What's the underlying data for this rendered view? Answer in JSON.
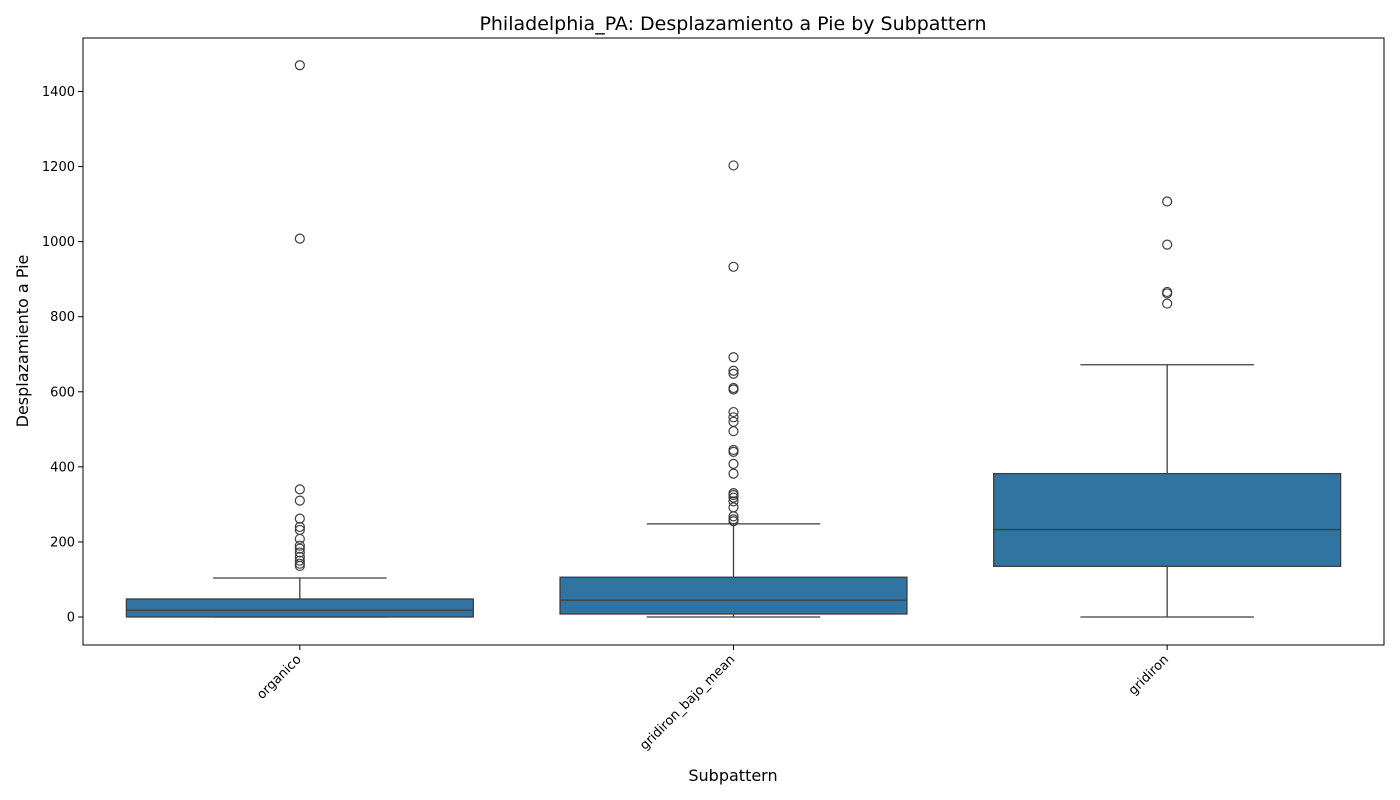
{
  "chart_data": {
    "type": "box",
    "title": "Philadelphia_PA: Desplazamiento a Pie by Subpattern",
    "xlabel": "Subpattern",
    "ylabel": "Desplazamiento a Pie",
    "ylim": [
      -75,
      1540
    ],
    "yticks": [
      0,
      200,
      400,
      600,
      800,
      1000,
      1200,
      1400
    ],
    "ytick_labels": [
      "0",
      "200",
      "400",
      "600",
      "800",
      "1000",
      "1200",
      "1400"
    ],
    "grid": false,
    "box_color": "#3274a1",
    "categories": [
      "organico",
      "gridiron_bajo_mean",
      "gridiron"
    ],
    "boxes": [
      {
        "category": "organico",
        "whisker_low": 0,
        "q1": 0,
        "median": 18,
        "q3": 48,
        "whisker_high": 104,
        "outliers": [
          1470,
          1008,
          340,
          310,
          262,
          240,
          232,
          208,
          190,
          182,
          172,
          160,
          150,
          142,
          136
        ]
      },
      {
        "category": "gridiron_bajo_mean",
        "whisker_low": 0,
        "q1": 8,
        "median": 45,
        "q3": 106,
        "whisker_high": 248,
        "outliers": [
          1203,
          933,
          692,
          656,
          648,
          610,
          606,
          546,
          532,
          520,
          495,
          445,
          440,
          408,
          382,
          330,
          325,
          318,
          308,
          292,
          268,
          260,
          255
        ]
      },
      {
        "category": "gridiron",
        "whisker_low": 0,
        "q1": 135,
        "median": 233,
        "q3": 382,
        "whisker_high": 672,
        "outliers": [
          1107,
          992,
          866,
          862,
          835
        ]
      }
    ]
  }
}
